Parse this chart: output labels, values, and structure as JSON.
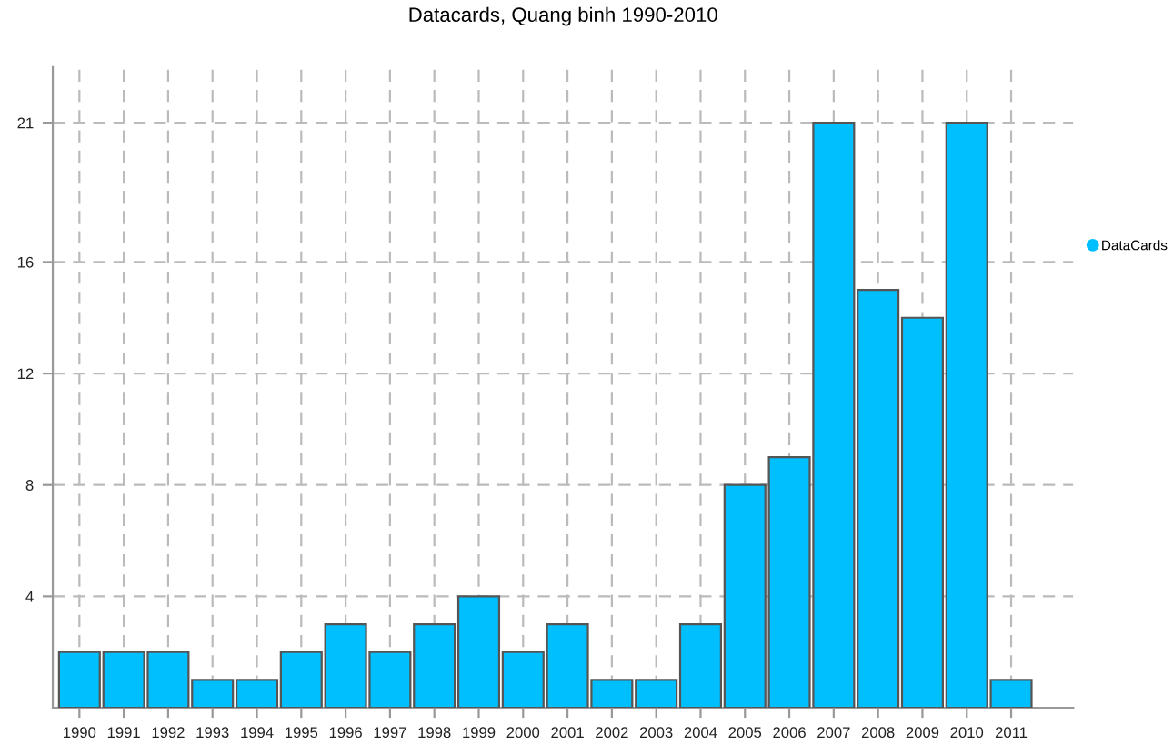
{
  "chart_data": {
    "type": "bar",
    "title": "Datacards, Quang binh 1990-2010",
    "categories": [
      "1990",
      "1991",
      "1992",
      "1993",
      "1994",
      "1995",
      "1996",
      "1997",
      "1998",
      "1999",
      "2000",
      "2001",
      "2002",
      "2003",
      "2004",
      "2005",
      "2006",
      "2007",
      "2008",
      "2009",
      "2010",
      "2011"
    ],
    "series": [
      {
        "name": "DataCards",
        "color": "#00bfff",
        "values": [
          2,
          2,
          2,
          1,
          1,
          2,
          3,
          2,
          3,
          4,
          2,
          3,
          1,
          1,
          3,
          8,
          9,
          21,
          15,
          14,
          21,
          1
        ]
      }
    ],
    "ylim": [
      0,
      23
    ],
    "yticks": [
      4,
      8,
      12,
      16,
      21
    ],
    "grid": true,
    "legend": "right",
    "marker": "circle"
  }
}
